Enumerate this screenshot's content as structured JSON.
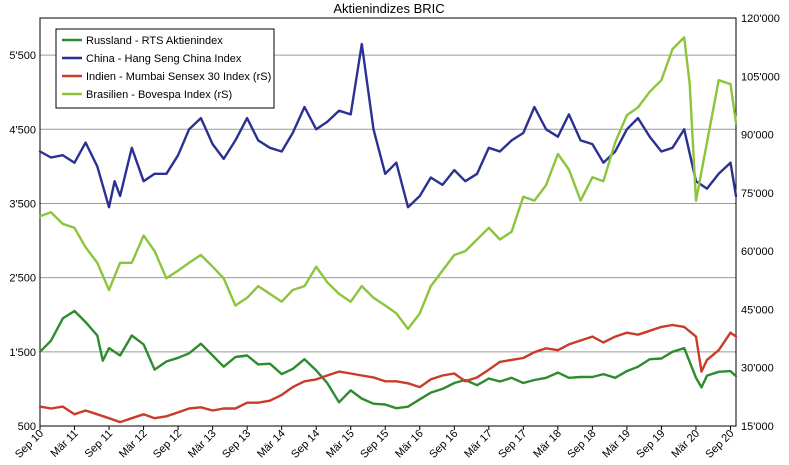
{
  "chart_data": {
    "type": "line",
    "title": "Aktienindizes BRIC",
    "grid": "horizontal",
    "legend_position": "top-left",
    "x_axis": {
      "range": [
        2010.67,
        2020.75
      ],
      "ticks": [
        {
          "label": "Sep 10",
          "value": 2010.67
        },
        {
          "label": "Mär 11",
          "value": 2011.17
        },
        {
          "label": "Sep 11",
          "value": 2011.67
        },
        {
          "label": "Mär 12",
          "value": 2012.17
        },
        {
          "label": "Sep 12",
          "value": 2012.67
        },
        {
          "label": "Mär 13",
          "value": 2013.17
        },
        {
          "label": "Sep 13",
          "value": 2013.67
        },
        {
          "label": "Mär 14",
          "value": 2014.17
        },
        {
          "label": "Sep 14",
          "value": 2014.67
        },
        {
          "label": "Mär 15",
          "value": 2015.17
        },
        {
          "label": "Sep 15",
          "value": 2015.67
        },
        {
          "label": "Mär 16",
          "value": 2016.17
        },
        {
          "label": "Sep 16",
          "value": 2016.67
        },
        {
          "label": "Mär 17",
          "value": 2017.17
        },
        {
          "label": "Sep 17",
          "value": 2017.67
        },
        {
          "label": "Mär 18",
          "value": 2018.17
        },
        {
          "label": "Sep 18",
          "value": 2018.67
        },
        {
          "label": "Mär 19",
          "value": 2019.17
        },
        {
          "label": "Sep 19",
          "value": 2019.67
        },
        {
          "label": "Mär 20",
          "value": 2020.17
        },
        {
          "label": "Sep 20",
          "value": 2020.67
        }
      ]
    },
    "y_left": {
      "range": [
        500,
        6000
      ],
      "ticks": [
        {
          "label": "500",
          "value": 500
        },
        {
          "label": "1'500",
          "value": 1500
        },
        {
          "label": "2'500",
          "value": 2500
        },
        {
          "label": "3'500",
          "value": 3500
        },
        {
          "label": "4'500",
          "value": 4500
        },
        {
          "label": "5'500",
          "value": 5500
        }
      ]
    },
    "y_right": {
      "range": [
        15000,
        120000
      ],
      "ticks": [
        {
          "label": "15'000",
          "value": 15000
        },
        {
          "label": "30'000",
          "value": 30000
        },
        {
          "label": "45'000",
          "value": 45000
        },
        {
          "label": "60'000",
          "value": 60000
        },
        {
          "label": "75'000",
          "value": 75000
        },
        {
          "label": "90'000",
          "value": 90000
        },
        {
          "label": "105'000",
          "value": 105000
        },
        {
          "label": "120'000",
          "value": 120000
        }
      ]
    },
    "series": [
      {
        "name": "Russland - RTS Aktienindex",
        "axis": "left",
        "color": "#2e8b2e",
        "x": [
          2010.67,
          2010.83,
          2011.0,
          2011.17,
          2011.33,
          2011.5,
          2011.58,
          2011.67,
          2011.83,
          2012.0,
          2012.17,
          2012.33,
          2012.5,
          2012.67,
          2012.83,
          2013.0,
          2013.17,
          2013.33,
          2013.5,
          2013.67,
          2013.83,
          2014.0,
          2014.17,
          2014.33,
          2014.5,
          2014.67,
          2014.83,
          2015.0,
          2015.17,
          2015.33,
          2015.5,
          2015.67,
          2015.83,
          2016.0,
          2016.17,
          2016.33,
          2016.5,
          2016.67,
          2016.83,
          2017.0,
          2017.17,
          2017.33,
          2017.5,
          2017.67,
          2017.83,
          2018.0,
          2018.17,
          2018.33,
          2018.5,
          2018.67,
          2018.83,
          2019.0,
          2019.17,
          2019.33,
          2019.5,
          2019.67,
          2019.83,
          2020.0,
          2020.17,
          2020.25,
          2020.33,
          2020.5,
          2020.67,
          2020.75
        ],
        "values": [
          1500,
          1650,
          1950,
          2050,
          1900,
          1720,
          1380,
          1550,
          1450,
          1720,
          1600,
          1260,
          1370,
          1420,
          1480,
          1610,
          1450,
          1300,
          1430,
          1450,
          1330,
          1340,
          1200,
          1270,
          1400,
          1250,
          1080,
          820,
          980,
          870,
          800,
          790,
          740,
          760,
          860,
          950,
          1000,
          1080,
          1120,
          1050,
          1140,
          1100,
          1150,
          1080,
          1120,
          1150,
          1220,
          1150,
          1160,
          1160,
          1200,
          1150,
          1240,
          1300,
          1400,
          1410,
          1500,
          1550,
          1150,
          1020,
          1180,
          1230,
          1240,
          1170
        ]
      },
      {
        "name": "China - Hang Seng China Index",
        "axis": "left",
        "color": "#2b3190",
        "x": [
          2010.67,
          2010.83,
          2011.0,
          2011.17,
          2011.33,
          2011.5,
          2011.67,
          2011.75,
          2011.83,
          2012.0,
          2012.17,
          2012.33,
          2012.5,
          2012.67,
          2012.83,
          2013.0,
          2013.17,
          2013.33,
          2013.5,
          2013.67,
          2013.83,
          2014.0,
          2014.17,
          2014.33,
          2014.5,
          2014.67,
          2014.83,
          2015.0,
          2015.17,
          2015.33,
          2015.5,
          2015.67,
          2015.83,
          2016.0,
          2016.17,
          2016.33,
          2016.5,
          2016.67,
          2016.83,
          2017.0,
          2017.17,
          2017.33,
          2017.5,
          2017.67,
          2017.83,
          2018.0,
          2018.17,
          2018.33,
          2018.5,
          2018.67,
          2018.83,
          2019.0,
          2019.17,
          2019.33,
          2019.5,
          2019.67,
          2019.83,
          2020.0,
          2020.17,
          2020.33,
          2020.5,
          2020.67,
          2020.75
        ],
        "values": [
          4200,
          4120,
          4150,
          4050,
          4320,
          4000,
          3450,
          3800,
          3600,
          4250,
          3800,
          3900,
          3900,
          4150,
          4500,
          4650,
          4300,
          4100,
          4350,
          4650,
          4350,
          4250,
          4200,
          4450,
          4800,
          4500,
          4600,
          4750,
          4700,
          5650,
          4500,
          3900,
          4050,
          3450,
          3600,
          3850,
          3750,
          3950,
          3800,
          3900,
          4250,
          4200,
          4350,
          4450,
          4800,
          4500,
          4400,
          4700,
          4350,
          4300,
          4050,
          4200,
          4500,
          4650,
          4400,
          4200,
          4250,
          4500,
          3800,
          3700,
          3900,
          4050,
          3600
        ]
      },
      {
        "name": "Indien - Mumbai Sensex 30 Index (rS)",
        "axis": "right",
        "color": "#c83c28",
        "x": [
          2010.67,
          2010.83,
          2011.0,
          2011.17,
          2011.33,
          2011.5,
          2011.67,
          2011.83,
          2012.0,
          2012.17,
          2012.33,
          2012.5,
          2012.67,
          2012.83,
          2013.0,
          2013.17,
          2013.33,
          2013.5,
          2013.67,
          2013.83,
          2014.0,
          2014.17,
          2014.33,
          2014.5,
          2014.67,
          2014.83,
          2015.0,
          2015.17,
          2015.33,
          2015.5,
          2015.67,
          2015.83,
          2016.0,
          2016.17,
          2016.33,
          2016.5,
          2016.67,
          2016.83,
          2017.0,
          2017.17,
          2017.33,
          2017.5,
          2017.67,
          2017.83,
          2018.0,
          2018.17,
          2018.33,
          2018.5,
          2018.67,
          2018.83,
          2019.0,
          2019.17,
          2019.33,
          2019.5,
          2019.67,
          2019.83,
          2020.0,
          2020.17,
          2020.25,
          2020.33,
          2020.5,
          2020.67,
          2020.75
        ],
        "values": [
          20000,
          19500,
          20000,
          18000,
          19000,
          18000,
          17000,
          16000,
          17000,
          18000,
          17000,
          17500,
          18500,
          19500,
          19800,
          19000,
          19500,
          19500,
          21000,
          21000,
          21500,
          23000,
          25000,
          26500,
          27000,
          28000,
          29000,
          28500,
          28000,
          27500,
          26500,
          26500,
          26000,
          25000,
          27000,
          28000,
          28500,
          26500,
          27500,
          29500,
          31500,
          32000,
          32500,
          34000,
          35000,
          34500,
          36000,
          37000,
          38000,
          36500,
          38000,
          39000,
          38500,
          39500,
          40500,
          41000,
          40500,
          38000,
          29000,
          32000,
          34500,
          39000,
          38000
        ]
      },
      {
        "name": "Brasilien - Bovespa Index (rS)",
        "axis": "right",
        "color": "#8cc43c",
        "x": [
          2010.67,
          2010.83,
          2011.0,
          2011.17,
          2011.33,
          2011.5,
          2011.67,
          2011.83,
          2012.0,
          2012.17,
          2012.33,
          2012.5,
          2012.67,
          2012.83,
          2013.0,
          2013.17,
          2013.33,
          2013.5,
          2013.67,
          2013.83,
          2014.0,
          2014.17,
          2014.33,
          2014.5,
          2014.67,
          2014.83,
          2015.0,
          2015.17,
          2015.33,
          2015.5,
          2015.67,
          2015.83,
          2016.0,
          2016.17,
          2016.33,
          2016.5,
          2016.67,
          2016.83,
          2017.0,
          2017.17,
          2017.33,
          2017.5,
          2017.67,
          2017.83,
          2018.0,
          2018.17,
          2018.33,
          2018.5,
          2018.67,
          2018.83,
          2019.0,
          2019.17,
          2019.33,
          2019.5,
          2019.67,
          2019.83,
          2020.0,
          2020.08,
          2020.17,
          2020.33,
          2020.5,
          2020.67,
          2020.75
        ],
        "values": [
          69000,
          70000,
          67000,
          66000,
          61000,
          57000,
          50000,
          57000,
          57000,
          64000,
          60000,
          53000,
          55000,
          57000,
          59000,
          56000,
          53000,
          46000,
          48000,
          51000,
          49000,
          47000,
          50000,
          51000,
          56000,
          52000,
          49000,
          47000,
          51000,
          48000,
          46000,
          44000,
          40000,
          44000,
          51000,
          55000,
          59000,
          60000,
          63000,
          66000,
          63000,
          65000,
          74000,
          73000,
          77000,
          85000,
          81000,
          73000,
          79000,
          78000,
          88000,
          95000,
          97000,
          101000,
          104000,
          112000,
          115000,
          103000,
          73000,
          88000,
          104000,
          103000,
          93000
        ]
      }
    ]
  }
}
